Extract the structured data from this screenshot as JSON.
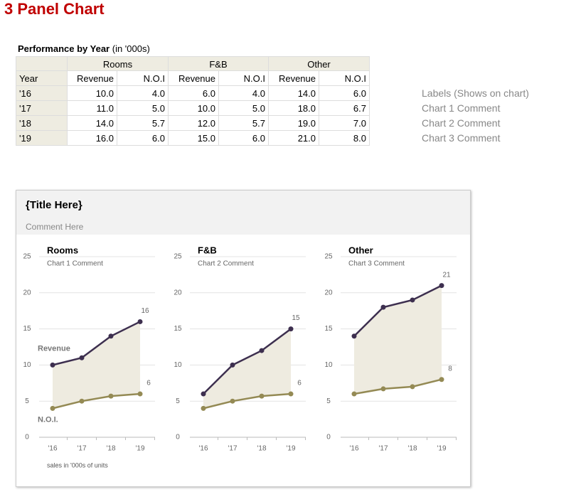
{
  "header": {
    "title": "3 Panel Chart"
  },
  "table": {
    "title": "Performance by Year",
    "subtitle": "(in '000s)",
    "groups": [
      "Rooms",
      "F&B",
      "Other"
    ],
    "columns": [
      "Year",
      "Revenue",
      "N.O.I",
      "Revenue",
      "N.O.I",
      "Revenue",
      "N.O.I"
    ],
    "rows": [
      [
        "'16",
        "10.0",
        "4.0",
        "6.0",
        "4.0",
        "14.0",
        "6.0"
      ],
      [
        "'17",
        "11.0",
        "5.0",
        "10.0",
        "5.0",
        "18.0",
        "6.7"
      ],
      [
        "'18",
        "14.0",
        "5.7",
        "12.0",
        "5.7",
        "19.0",
        "7.0"
      ],
      [
        "'19",
        "16.0",
        "6.0",
        "15.0",
        "6.0",
        "21.0",
        "8.0"
      ]
    ]
  },
  "notes": [
    "Labels (Shows on chart)",
    "Chart 1 Comment",
    "Chart 2 Comment",
    "Chart 3 Comment"
  ],
  "panel": {
    "title": "{Title Here}",
    "comment": "Comment Here"
  },
  "chart_data": [
    {
      "type": "line",
      "title": "Rooms",
      "subtitle": "Chart 1 Comment",
      "categories": [
        "'16",
        "'17",
        "'18",
        "'19"
      ],
      "series": [
        {
          "name": "Revenue",
          "color": "#3d2f4f",
          "values": [
            10,
            11,
            14,
            16
          ]
        },
        {
          "name": "N.O.I.",
          "color": "#948a54",
          "values": [
            4,
            5,
            5.7,
            6
          ]
        }
      ],
      "ylim": [
        0,
        25
      ],
      "yticks": [
        0,
        5,
        10,
        15,
        20,
        25
      ],
      "grid": true,
      "fill_between": "#eeebe0",
      "data_labels": "last",
      "note": "sales in '000s of units"
    },
    {
      "type": "line",
      "title": "F&B",
      "subtitle": "Chart 2 Comment",
      "categories": [
        "'16",
        "'17",
        "'18",
        "'19"
      ],
      "series": [
        {
          "color": "#3d2f4f",
          "values": [
            6,
            10,
            12,
            15
          ]
        },
        {
          "color": "#948a54",
          "values": [
            4,
            5,
            5.7,
            6
          ]
        }
      ],
      "ylim": [
        0,
        25
      ],
      "yticks": [
        0,
        5,
        10,
        15,
        20,
        25
      ],
      "grid": true,
      "fill_between": "#eeebe0",
      "data_labels": "last"
    },
    {
      "type": "line",
      "title": "Other",
      "subtitle": "Chart 3 Comment",
      "categories": [
        "'16",
        "'17",
        "'18",
        "'19"
      ],
      "series": [
        {
          "color": "#3d2f4f",
          "values": [
            14,
            18,
            19,
            21
          ]
        },
        {
          "color": "#948a54",
          "values": [
            6,
            6.7,
            7,
            8
          ]
        }
      ],
      "ylim": [
        0,
        25
      ],
      "yticks": [
        0,
        5,
        10,
        15,
        20,
        25
      ],
      "grid": true,
      "fill_between": "#eeebe0",
      "data_labels": "last"
    }
  ]
}
